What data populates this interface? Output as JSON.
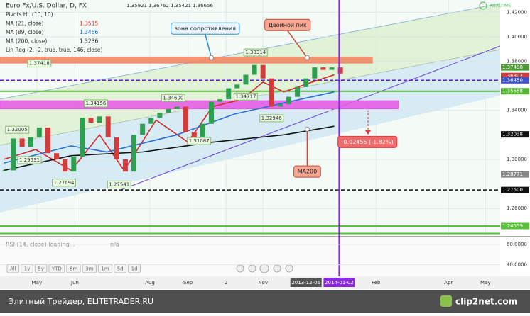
{
  "header": {
    "realtime": "REALTIME"
  },
  "chart_data": {
    "type": "candlestick",
    "title": "Euro Fx/U.S. Dollar, D, FX",
    "ohlc": [
      1.35921,
      1.36762,
      1.35421,
      1.36656
    ],
    "indicators": [
      {
        "name": "Pivots HL (10, 10)"
      },
      {
        "name": "MA (21, close)",
        "value": 1.3515,
        "color": "#d42a2a"
      },
      {
        "name": "MA (89, close)",
        "value": 1.3466,
        "color": "#2a6fd4"
      },
      {
        "name": "MA (200, close)",
        "value": 1.3236,
        "color": "#222222"
      },
      {
        "name": "Lin Reg (2, -2, true, true, 146, close)"
      }
    ],
    "x": [
      "2013-04-05",
      "2013-04-12",
      "2013-04-19",
      "2013-04-26",
      "2013-05-03",
      "2013-05-10",
      "2013-05-17",
      "2013-05-24",
      "2013-05-31",
      "2013-06-07",
      "2013-06-14",
      "2013-06-21",
      "2013-06-28",
      "2013-07-05",
      "2013-07-12",
      "2013-07-19",
      "2013-07-26",
      "2013-08-02",
      "2013-08-09",
      "2013-08-16",
      "2013-08-23",
      "2013-08-30",
      "2013-09-06",
      "2013-09-13",
      "2013-09-20",
      "2013-09-27",
      "2013-10-04",
      "2013-10-11",
      "2013-10-18",
      "2013-10-25",
      "2013-11-01",
      "2013-11-08",
      "2013-11-15",
      "2013-11-22",
      "2013-11-29",
      "2013-12-06",
      "2013-12-13",
      "2013-12-20",
      "2013-12-27",
      "2014-01-03"
    ],
    "close": [
      1.291,
      1.317,
      1.31,
      1.318,
      1.326,
      1.305,
      1.3,
      1.29,
      1.302,
      1.334,
      1.33,
      1.335,
      1.318,
      1.3,
      1.29,
      1.32,
      1.329,
      1.334,
      1.338,
      1.341,
      1.343,
      1.322,
      1.316,
      1.329,
      1.347,
      1.349,
      1.358,
      1.361,
      1.369,
      1.377,
      1.366,
      1.343,
      1.345,
      1.351,
      1.359,
      1.366,
      1.375,
      1.373,
      1.375,
      1.37
    ],
    "up_color": "#2e9e4f",
    "down_color": "#d43c3c",
    "ma_series": [
      {
        "color": "#d42a2a",
        "x": [
          "2013-04-04",
          "2013-04-30",
          "2013-05-29",
          "2013-06-21",
          "2013-07-11",
          "2013-08-06",
          "2013-09-01",
          "2013-09-21",
          "2013-10-15",
          "2013-11-01",
          "2013-11-18",
          "2013-12-11",
          "2013-12-29"
        ],
        "values": [
          1.3,
          1.308,
          1.291,
          1.32,
          1.291,
          1.332,
          1.314,
          1.343,
          1.349,
          1.363,
          1.355,
          1.363,
          1.369
        ]
      },
      {
        "color": "#2a6fd4",
        "x": [
          "2013-04-04",
          "2013-05-29",
          "2013-06-27",
          "2013-08-23",
          "2013-10-09",
          "2013-11-18",
          "2013-12-29"
        ],
        "values": [
          1.297,
          1.311,
          1.306,
          1.32,
          1.337,
          1.346,
          1.355
        ]
      },
      {
        "color": "#111111",
        "x": [
          "2013-04-04",
          "2013-05-29",
          "2013-07-26",
          "2013-09-21",
          "2013-11-18",
          "2013-12-29"
        ],
        "values": [
          1.291,
          1.303,
          1.306,
          1.314,
          1.32,
          1.327
        ]
      }
    ],
    "xlim": [
      "2013-04-01",
      "2014-05-13"
    ],
    "ylim": [
      1.2375,
      1.43
    ],
    "yticks": [
      {
        "value": 1.42,
        "label": "1.42000"
      },
      {
        "value": 1.4,
        "label": "1.40000"
      },
      {
        "value": 1.38,
        "label": "1.38000"
      },
      {
        "value": 1.34,
        "label": "1.34000"
      },
      {
        "value": 1.3,
        "label": "1.30000"
      },
      {
        "value": 1.26,
        "label": "1.26000"
      }
    ],
    "xticks": [
      {
        "value": "2013-05-01",
        "label": "May"
      },
      {
        "value": "2013-06-01",
        "label": "Jun"
      },
      {
        "value": "2013-08-01",
        "label": "Aug"
      },
      {
        "value": "2013-09-01",
        "label": "Sep"
      },
      {
        "value": "2013-10-02",
        "label": "2"
      },
      {
        "value": "2013-11-01",
        "label": "Nov"
      },
      {
        "value": "2014-02-01",
        "label": "Feb"
      },
      {
        "value": "2014-04-01",
        "label": "Apr"
      },
      {
        "value": "2014-05-01",
        "label": "May"
      }
    ],
    "date_marks": [
      {
        "value": "2013-12-06",
        "label": "2013-12-06",
        "color": "#555555"
      },
      {
        "value": "2014-01-02",
        "label": "2014-01-02",
        "color": "#8a2be2"
      }
    ],
    "zones": [
      {
        "from": 1.3785,
        "to": 1.3835,
        "end": "2014-01-29",
        "color": "#f2835e"
      },
      {
        "from": 1.3412,
        "to": 1.3478,
        "end": "2014-02-19",
        "color": "#e457e4"
      }
    ],
    "levels": [
      {
        "value": 1.3645,
        "color": "#5a20c8",
        "dash": true
      },
      {
        "value": 1.35558,
        "color": "#55b535",
        "dash": false
      },
      {
        "value": 1.275,
        "color": "#111111",
        "dash": true
      },
      {
        "value": 1.24559,
        "color": "#55c535",
        "dash": false
      },
      {
        "value": 1.2395,
        "color": "#55c535",
        "dash": false
      }
    ],
    "price_labels": [
      {
        "value": 1.37498,
        "color": "#4e9e36"
      },
      {
        "value": 1.36802,
        "color": "#d43c3c"
      },
      {
        "value": 1.3645,
        "label": "1.36450",
        "color": "#3d54c8"
      },
      {
        "value": 1.35558,
        "color": "#55b535"
      },
      {
        "value": 1.32038,
        "color": "#111111"
      },
      {
        "value": 1.28771,
        "color": "#888888"
      },
      {
        "value": 1.275,
        "label": "1.27500",
        "color": "#111111"
      },
      {
        "value": 1.24559,
        "color": "#55c535"
      }
    ],
    "level_labels": [
      {
        "x": "2013-10-26",
        "value": 1.38314
      },
      {
        "x": "2013-08-20",
        "value": 1.346,
        "label": "1.34600"
      },
      {
        "x": "2013-06-18",
        "value": 1.34156
      },
      {
        "x": "2013-10-18",
        "value": 1.34717
      },
      {
        "x": "2013-11-08",
        "value": 1.32946
      },
      {
        "x": "2013-04-15",
        "value": 1.32005
      },
      {
        "x": "2013-05-03",
        "value": 1.37418
      },
      {
        "x": "2013-09-10",
        "value": 1.31087
      },
      {
        "x": "2013-04-25",
        "value": 1.29531
      },
      {
        "x": "2013-07-07",
        "value": 1.27541
      },
      {
        "x": "2013-05-23",
        "value": 1.27694
      }
    ],
    "annotations": [
      {
        "text": "зона сопротивления",
        "x": "2013-09-15",
        "value": 1.4067,
        "to_x": "2013-09-20",
        "to_value": 1.383,
        "color": "#2a8fd4",
        "fill": "#e8f4ff"
      },
      {
        "text": "Двойной пик",
        "x": "2013-11-21",
        "value": 1.4096,
        "to_x": "2013-12-07",
        "to_value": 1.383,
        "color": "#c44a3a",
        "fill": "#f7a894"
      },
      {
        "text": "MA200",
        "x": "2013-12-07",
        "value": 1.29,
        "to_x": "2013-12-07",
        "to_value": 1.3245,
        "color": "#c44a3a",
        "fill": "#f7a894"
      },
      {
        "text": "-0.02455 (-1.82%)",
        "x": "2014-01-25",
        "value": 1.3142,
        "color": "#d43c3c",
        "fill": "#f26a6a"
      }
    ],
    "vline": {
      "value": "2014-01-02",
      "color": "#8a2be2"
    }
  },
  "rsi": {
    "title": "RSI (14, close) loading...",
    "value_text": "n/a",
    "ylim": [
      30,
      67
    ],
    "yticks": [
      {
        "value": 60,
        "label": "60.0000"
      },
      {
        "value": 40,
        "label": "40.0000"
      }
    ]
  },
  "buttons": [
    "All",
    "1y",
    "5y",
    "YTD",
    "6m",
    "3m",
    "1m",
    "5d",
    "1d"
  ],
  "footer": {
    "left": "Элитный Трейдер, ELITETRADER.RU",
    "right": "clip2net.com"
  }
}
